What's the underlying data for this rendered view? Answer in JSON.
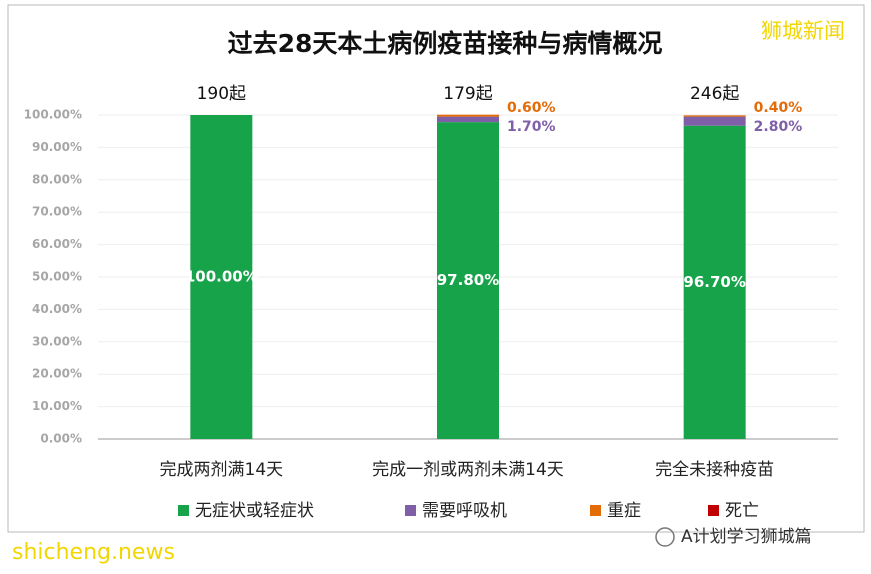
{
  "chart_data": {
    "type": "stacked-bar",
    "title": "过去28天本土病例疫苗接种与病情概况",
    "categories": [
      "完成两剂满14天",
      "完成一剂或两剂未满14天",
      "完全未接种疫苗"
    ],
    "series": [
      {
        "name": "无症状或轻症状",
        "color": "#17a34a",
        "values": [
          100,
          97.8,
          96.7
        ],
        "value_labels": [
          "100.00%",
          "97.80%",
          "96.70%"
        ]
      },
      {
        "name": "需要呼吸机",
        "color": "#7f5fa8",
        "values": [
          0,
          1.7,
          2.8
        ],
        "value_labels": [
          null,
          "1.70%",
          "2.80%"
        ]
      },
      {
        "name": "重症",
        "color": "#e36c09",
        "values": [
          0,
          0.6,
          0.4
        ],
        "value_labels": [
          null,
          "0.60%",
          "0.40%"
        ]
      },
      {
        "name": "死亡",
        "color": "#c00000",
        "values": [
          0,
          0,
          0
        ]
      }
    ],
    "case_counts": {
      "values": [
        190,
        179,
        246
      ],
      "value_labels": [
        "190起",
        "179起",
        "246起"
      ]
    },
    "ylim": [
      0,
      100
    ],
    "yticks": [
      {
        "value": 0,
        "label": "0.00%"
      },
      {
        "value": 10,
        "label": "10.00%"
      },
      {
        "value": 20,
        "label": "20.00%"
      },
      {
        "value": 30,
        "label": "30.00%"
      },
      {
        "value": 40,
        "label": "40.00%"
      },
      {
        "value": 50,
        "label": "50.00%"
      },
      {
        "value": 60,
        "label": "60.00%"
      },
      {
        "value": 70,
        "label": "70.00%"
      },
      {
        "value": 80,
        "label": "80.00%"
      },
      {
        "value": 90,
        "label": "90.00%"
      },
      {
        "value": 100,
        "label": "100.00%"
      }
    ],
    "grid": true,
    "legend": "bottom"
  },
  "watermarks": {
    "top_right": "狮城新闻",
    "bottom_left": "shicheng.news",
    "bottom_right": "A计划学习狮城篇"
  }
}
